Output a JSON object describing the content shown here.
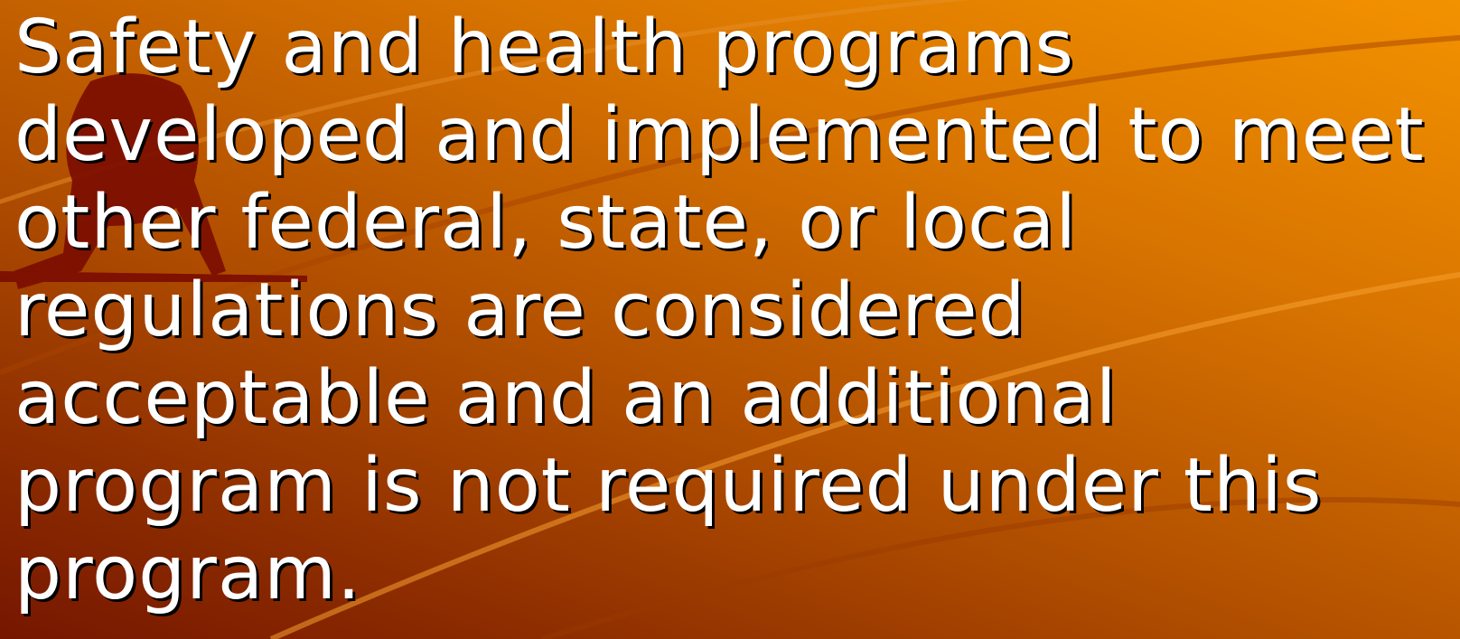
{
  "slide": {
    "lines": [
      "Safety and health programs",
      "developed and implemented to meet",
      "other federal, state, or local",
      "regulations are considered",
      "acceptable and an additional",
      "program is not required under this",
      "program."
    ]
  }
}
